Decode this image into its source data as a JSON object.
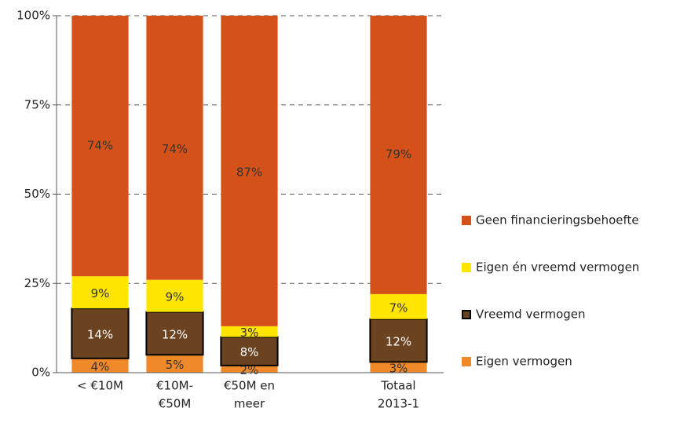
{
  "chart_data": {
    "type": "stacked_bar",
    "categories": [
      [
        "< €10M"
      ],
      [
        "€10M-",
        "€50M"
      ],
      [
        "€50M en",
        "meer"
      ],
      null,
      [
        "Totaal",
        "2013-1"
      ]
    ],
    "series": [
      {
        "name": "Eigen vermogen",
        "color": "#f0892a",
        "values": [
          4,
          5,
          2,
          null,
          3
        ],
        "value_labels": [
          "4%",
          "5%",
          "2%",
          null,
          "3%"
        ]
      },
      {
        "name": "Vreemd vermogen",
        "color": "#6b4320",
        "edgecolor": "#000000",
        "values": [
          14,
          12,
          8,
          null,
          12
        ],
        "value_labels": [
          "14%",
          "12%",
          "8%",
          null,
          "12%"
        ]
      },
      {
        "name": "Eigen én vreemd vermogen",
        "color": "#ffe500",
        "values": [
          9,
          9,
          3,
          null,
          7
        ],
        "value_labels": [
          "9%",
          "9%",
          "3%",
          null,
          "7%"
        ]
      },
      {
        "name": "Geen financieringsbehoefte",
        "color": "#d4521a",
        "values": [
          74,
          74,
          87,
          null,
          79
        ],
        "value_labels": [
          "74%",
          "74%",
          "87%",
          null,
          "79%"
        ]
      }
    ],
    "ylim": [
      0,
      100
    ],
    "yticks": [
      {
        "value": 0,
        "label": "0%"
      },
      {
        "value": 25,
        "label": "25%"
      },
      {
        "value": 50,
        "label": "50%"
      },
      {
        "value": 75,
        "label": "75%"
      },
      {
        "value": 100,
        "label": "100%"
      }
    ],
    "grid": true
  }
}
